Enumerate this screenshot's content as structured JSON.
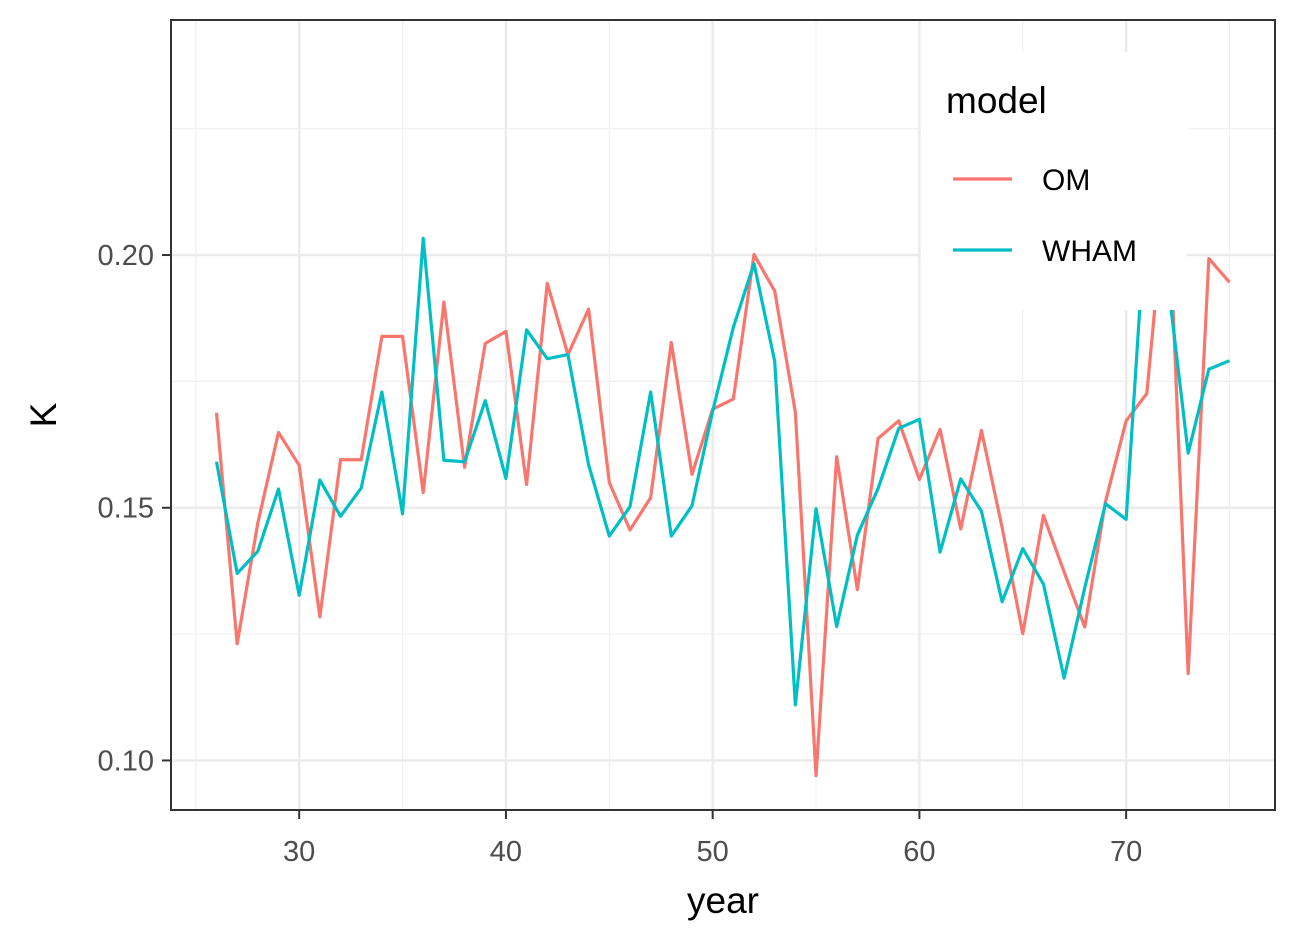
{
  "chart_data": {
    "type": "line",
    "title": "",
    "xlabel": "year",
    "ylabel": "K",
    "xlim": [
      23.8,
      77.2
    ],
    "ylim": [
      0.0902,
      0.2465
    ],
    "x_ticks": [
      30,
      40,
      50,
      60,
      70
    ],
    "x_tick_labels": [
      "30",
      "40",
      "50",
      "60",
      "70"
    ],
    "y_ticks": [
      0.1,
      0.15,
      0.2
    ],
    "y_tick_labels": [
      "0.10",
      "0.15",
      "0.20"
    ],
    "grid": true,
    "legend": {
      "title": "model",
      "position": "top-right"
    },
    "x": [
      26,
      27,
      28,
      29,
      30,
      31,
      32,
      33,
      34,
      35,
      36,
      37,
      38,
      39,
      40,
      41,
      42,
      43,
      44,
      45,
      46,
      47,
      48,
      49,
      50,
      51,
      52,
      53,
      54,
      55,
      56,
      57,
      58,
      59,
      60,
      61,
      62,
      63,
      64,
      65,
      66,
      67,
      68,
      69,
      70,
      71,
      72,
      73,
      74,
      75
    ],
    "series": [
      {
        "name": "OM",
        "color": "#F8766D",
        "values": [
          0.1688,
          0.1231,
          0.147,
          0.1649,
          0.1584,
          0.1284,
          0.1595,
          0.1595,
          0.1839,
          0.1839,
          0.153,
          0.1907,
          0.158,
          0.1825,
          0.1849,
          0.1546,
          0.1944,
          0.1803,
          0.1893,
          0.155,
          0.1456,
          0.152,
          0.1827,
          0.1566,
          0.1695,
          0.1715,
          0.2001,
          0.1929,
          0.1689,
          0.097,
          0.1601,
          0.1338,
          0.1637,
          0.1672,
          0.1556,
          0.1655,
          0.1458,
          0.1653,
          0.1461,
          0.1251,
          0.1485,
          0.1373,
          0.1264,
          0.1512,
          0.1672,
          0.1726,
          0.216,
          0.1172,
          0.1993,
          0.1946
        ]
      },
      {
        "name": "WHAM",
        "color": "#00BFC4",
        "values": [
          0.1591,
          0.137,
          0.1414,
          0.1537,
          0.1327,
          0.1555,
          0.1483,
          0.1539,
          0.1729,
          0.1488,
          0.2033,
          0.1594,
          0.1591,
          0.1712,
          0.1558,
          0.1852,
          0.1795,
          0.1803,
          0.1585,
          0.1444,
          0.1502,
          0.1729,
          0.1444,
          0.1504,
          0.1691,
          0.1857,
          0.1983,
          0.179,
          0.111,
          0.1498,
          0.1265,
          0.1446,
          0.1538,
          0.1657,
          0.1675,
          0.1412,
          0.1557,
          0.1493,
          0.1314,
          0.1419,
          0.1349,
          0.1163,
          0.1342,
          0.1508,
          0.1477,
          0.211,
          0.1953,
          0.1608,
          0.1774,
          0.1791
        ]
      }
    ]
  }
}
